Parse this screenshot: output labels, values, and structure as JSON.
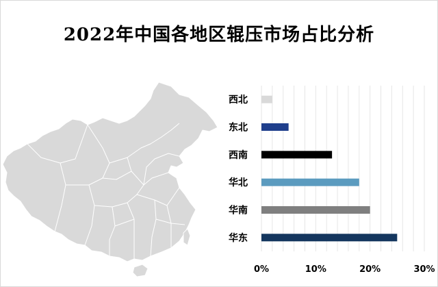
{
  "title": "2022年中国各地区辊压市场占比分析",
  "chart_data": {
    "type": "bar",
    "orientation": "horizontal",
    "categories": [
      "西北",
      "东北",
      "西南",
      "华北",
      "华南",
      "华东"
    ],
    "values": [
      0.02,
      0.05,
      0.13,
      0.18,
      0.2,
      0.25
    ],
    "bar_colors": [
      "#d9d9d9",
      "#1f3f8c",
      "#000000",
      "#5b9bbf",
      "#7f7f7f",
      "#14365e"
    ],
    "xlim": [
      0,
      0.3
    ],
    "xticks": [
      "0%",
      "10%",
      "20%",
      "30%"
    ],
    "grid": true
  },
  "map": {
    "fill_color": "#d9d9d9",
    "border_color": "#ffffff"
  }
}
